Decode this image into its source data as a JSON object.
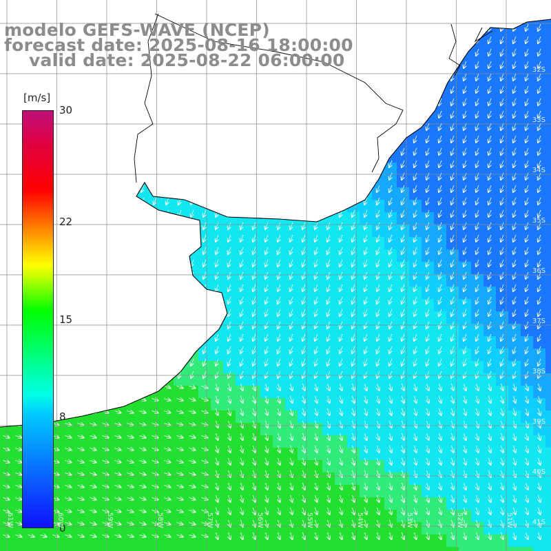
{
  "title": {
    "line1": "modelo GEFS-WAVE (NCEP)",
    "line2": "forecast date: 2025-08-16 18:00:00",
    "line3": "valid date: 2025-08-22 06:00:00"
  },
  "colorbar": {
    "unit": "[m/s]",
    "min": 0,
    "max": 30,
    "ticks": [
      "30",
      "22",
      "15",
      "8",
      "0"
    ],
    "tick_values": [
      30,
      22,
      15,
      8,
      0
    ],
    "colors": [
      "#1010ff",
      "#00c8ff",
      "#00ffe6",
      "#00ff00",
      "#ffff00",
      "#ff8000",
      "#ff0000",
      "#c0107a"
    ]
  },
  "map_colors": {
    "land": "#ffffff",
    "coastline": "#000000",
    "grid": "#8a8a8a",
    "arrows": "#ffffff"
  },
  "latitude_labels": [
    "32S",
    "33S",
    "34S",
    "35S",
    "36S",
    "37S",
    "38S",
    "39S",
    "40S",
    "41S"
  ],
  "longitude_labels": [
    "61W",
    "60W",
    "59W",
    "58W",
    "57W",
    "56W",
    "55W",
    "54W",
    "53W",
    "52W",
    "51W"
  ]
}
